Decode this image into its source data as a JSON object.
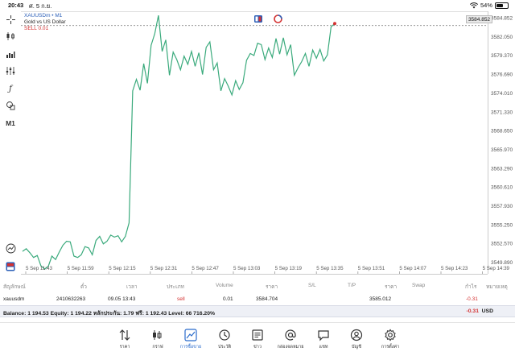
{
  "statusbar": {
    "time": "20:43",
    "date": "ศ. 5 ก.ย.",
    "battery": "54%"
  },
  "chart_header": {
    "symbol": "XAUUSDm • M1",
    "description": "Gold vs US Dollar",
    "order_line": "SELL 0.01"
  },
  "toolbar": {
    "timeframe": "M1"
  },
  "current_price": "3584.852",
  "chart_data": {
    "type": "line",
    "series": [
      {
        "values": [
          3551.5,
          3551.9,
          3551.3,
          3550.6,
          3550.9,
          3549.4,
          3548.9,
          3549.3,
          3550.8,
          3550.3,
          3551.4,
          3552.4,
          3553.0,
          3552.9,
          3550.8,
          3550.6,
          3551.0,
          3552.2,
          3552.0,
          3551.0,
          3553.1,
          3553.7,
          3552.6,
          3553.0,
          3553.9,
          3553.6,
          3553.8,
          3552.9,
          3553.7,
          3555.7,
          3575.1,
          3576.8,
          3575.2,
          3579.1,
          3576.2,
          3581.8,
          3583.5,
          3586.2,
          3580.9,
          3582.6,
          3577.4,
          3580.8,
          3579.7,
          3578.2,
          3580.2,
          3579.0,
          3580.9,
          3578.7,
          3580.7,
          3577.5,
          3581.5,
          3582.3,
          3578.2,
          3579.2,
          3575.1,
          3576.9,
          3575.8,
          3574.5,
          3576.6,
          3575.3,
          3576.3,
          3579.6,
          3580.6,
          3580.3,
          3582.1,
          3581.9,
          3579.7,
          3581.4,
          3580.0,
          3582.8,
          3580.5,
          3582.9,
          3580.4,
          3581.9,
          3577.4,
          3578.5,
          3579.4,
          3580.6,
          3578.7,
          3581.1,
          3579.9,
          3581.2,
          3579.5,
          3580.4,
          3584.5,
          3585.0
        ]
      }
    ],
    "ylim": [
      3548.2,
      3586.8
    ],
    "y_ticks": [
      "3584.852",
      "3582.050",
      "3579.370",
      "3576.690",
      "3574.010",
      "3571.330",
      "3568.650",
      "3565.970",
      "3563.290",
      "3560.610",
      "3557.930",
      "3555.250",
      "3552.570",
      "3549.890"
    ],
    "x_ticks": [
      "5 Sep 11:43",
      "5 Sep 11:59",
      "5 Sep 12:15",
      "5 Sep 12:31",
      "5 Sep 12:47",
      "5 Sep 13:03",
      "5 Sep 13:19",
      "5 Sep 13:35",
      "5 Sep 13:51",
      "5 Sep 14:07",
      "5 Sep 14:23",
      "5 Sep 14:39"
    ],
    "order_level": 3584.704,
    "grid": false,
    "colors": {
      "line": "#3aaa7c",
      "order": "#d43232"
    }
  },
  "table": {
    "headers": [
      "สัญลักษณ์",
      "ตั๋ว",
      "เวลา",
      "ประเภท",
      "Volume",
      "ราคา",
      "S/L",
      "T/P",
      "ราคา",
      "Swap",
      "กำไร",
      "หมายเหตุ"
    ],
    "row": {
      "symbol": "xauusdm",
      "ticket": "2410632263",
      "time": "09.05 13:43",
      "type": "sell",
      "volume": "0.01",
      "price": "3584.704",
      "sl": "",
      "tp": "",
      "current": "3585.012",
      "swap": "",
      "profit": "-0.31"
    }
  },
  "balance": {
    "text": "Balance: 1 194.53 Equity: 1 194.22 หลักประกัน: 1.79 ฟรี: 1 192.43 Level: 66 716.20%",
    "pl": "-0.31",
    "currency": "USD"
  },
  "tabs": [
    {
      "label": "ราคา",
      "icon": "quotes-icon"
    },
    {
      "label": "กราฟ",
      "icon": "chart-icon"
    },
    {
      "label": "การซื้อขาย",
      "icon": "trade-icon"
    },
    {
      "label": "ประวัติ",
      "icon": "history-icon"
    },
    {
      "label": "ข่าว",
      "icon": "news-icon"
    },
    {
      "label": "กล่องจดหมาย",
      "icon": "mailbox-icon"
    },
    {
      "label": "แชท",
      "icon": "chat-icon"
    },
    {
      "label": "บัญชี",
      "icon": "account-icon"
    },
    {
      "label": "การตั้งค่า",
      "icon": "settings-icon"
    }
  ]
}
